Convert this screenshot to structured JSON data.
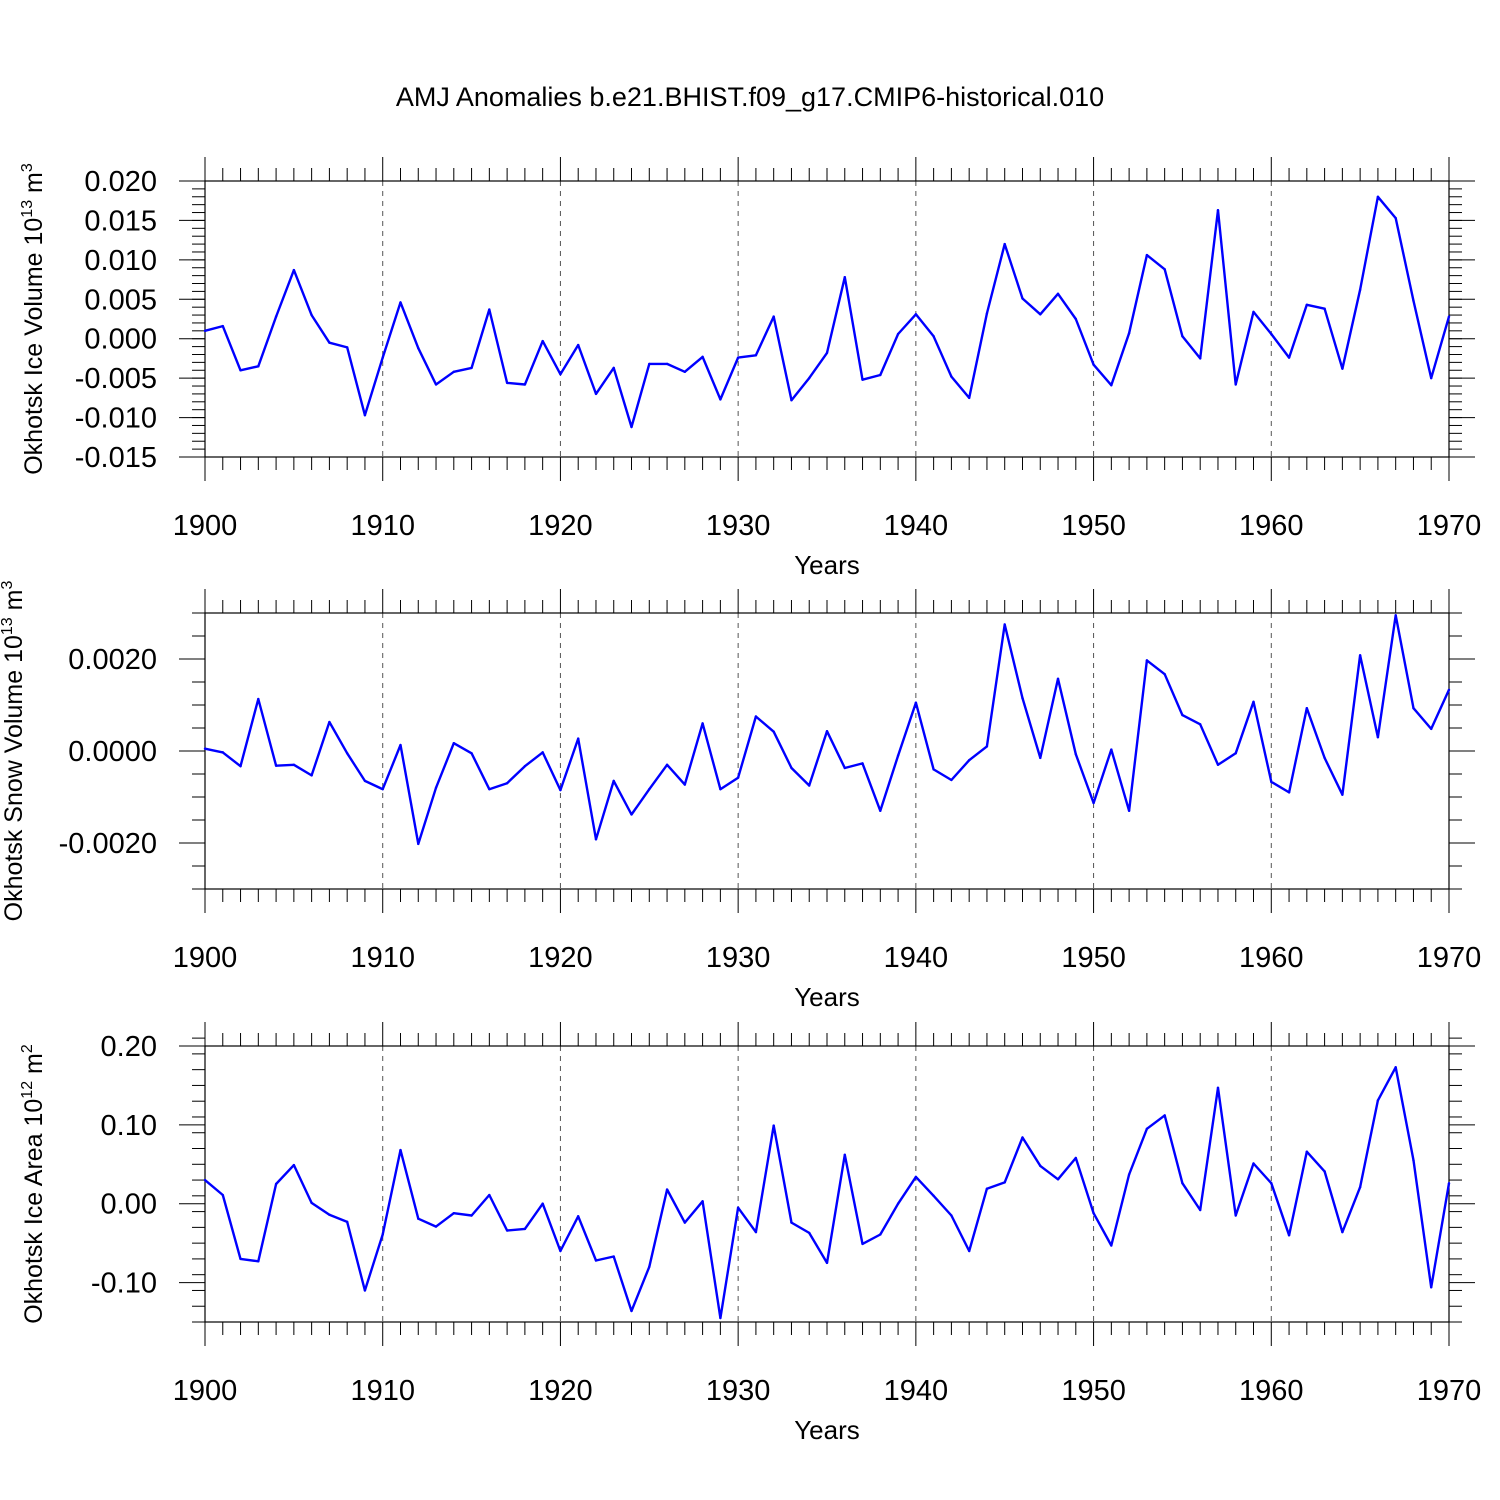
{
  "title": "AMJ Anomalies b.e21.BHIST.f09_g17.CMIP6-historical.010",
  "chart_data": [
    {
      "type": "line",
      "ylabel": "Okhotsk Ice Volume",
      "yunit_base": "10",
      "yunit_exp": "13",
      "yunit_tail": "m",
      "yunit_tail_exp": "3",
      "xlabel": "Years",
      "xlim": [
        1900,
        1970
      ],
      "ylim": [
        -0.015,
        0.02
      ],
      "yticks": [
        0.02,
        0.015,
        0.01,
        0.005,
        0.0,
        -0.005,
        -0.01,
        -0.015
      ],
      "ytick_labels": [
        "0.020",
        "0.015",
        "0.010",
        "0.005",
        "0.000",
        "-0.005",
        "-0.010",
        "-0.015"
      ],
      "xticks": [
        1900,
        1910,
        1920,
        1930,
        1940,
        1950,
        1960,
        1970
      ],
      "xtick_labels": [
        "1900",
        "1910",
        "1920",
        "1930",
        "1940",
        "1950",
        "1960",
        "1970"
      ],
      "x_start": 1900,
      "values": [
        0.001,
        0.0016,
        -0.004,
        -0.0035,
        0.0028,
        0.0087,
        0.003,
        -0.0005,
        -0.0011,
        -0.0097,
        -0.0024,
        0.0046,
        -0.0012,
        -0.0058,
        -0.0042,
        -0.0037,
        0.0037,
        -0.0056,
        -0.0058,
        -0.0003,
        -0.0045,
        -0.0008,
        -0.007,
        -0.0037,
        -0.0112,
        -0.0032,
        -0.0032,
        -0.0042,
        -0.0023,
        -0.0077,
        -0.0024,
        -0.0021,
        0.0028,
        -0.0078,
        -0.005,
        -0.0018,
        0.0078,
        -0.0052,
        -0.0046,
        0.0006,
        0.0031,
        0.0003,
        -0.0048,
        -0.0075,
        0.0032,
        0.012,
        0.0051,
        0.0031,
        0.0057,
        0.0025,
        -0.0033,
        -0.0059,
        0.0007,
        0.0106,
        0.0088,
        0.0003,
        -0.0025,
        0.0163,
        -0.0058,
        0.0034,
        0.0006,
        -0.0024,
        0.0043,
        0.0038,
        -0.0038,
        0.0062,
        0.018,
        0.0153,
        0.0048,
        -0.005,
        0.0028
      ],
      "minor_y_step": 0.001
    },
    {
      "type": "line",
      "ylabel": "Okhotsk Snow Volume",
      "yunit_base": "10",
      "yunit_exp": "13",
      "yunit_tail": "m",
      "yunit_tail_exp": "3",
      "xlabel": "Years",
      "xlim": [
        1900,
        1970
      ],
      "ylim": [
        -0.003,
        0.003
      ],
      "yticks": [
        0.002,
        0.0,
        -0.002
      ],
      "ytick_labels": [
        "0.0020",
        "0.0000",
        "-0.0020"
      ],
      "xticks": [
        1900,
        1910,
        1920,
        1930,
        1940,
        1950,
        1960,
        1970
      ],
      "xtick_labels": [
        "1900",
        "1910",
        "1920",
        "1930",
        "1940",
        "1950",
        "1960",
        "1970"
      ],
      "x_start": 1900,
      "values": [
        5e-05,
        -3e-05,
        -0.00033,
        0.00113,
        -0.00032,
        -0.0003,
        -0.00053,
        0.00063,
        -5e-05,
        -0.00065,
        -0.00083,
        0.00013,
        -0.00202,
        -0.0008,
        0.00017,
        -5e-05,
        -0.00083,
        -0.0007,
        -0.00033,
        -3e-05,
        -0.00085,
        0.00027,
        -0.00192,
        -0.00065,
        -0.00138,
        -0.00083,
        -0.0003,
        -0.00073,
        0.0006,
        -0.00083,
        -0.00058,
        0.00075,
        0.00042,
        -0.00037,
        -0.00075,
        0.00043,
        -0.00037,
        -0.00027,
        -0.0013,
        -0.0001,
        0.00105,
        -0.0004,
        -0.00063,
        -0.0002,
        0.0001,
        0.00275,
        0.00115,
        -0.00015,
        0.00157,
        -7e-05,
        -0.00113,
        3e-05,
        -0.0013,
        0.00197,
        0.00167,
        0.00078,
        0.00058,
        -0.0003,
        -5e-05,
        0.00107,
        -0.00067,
        -0.0009,
        0.00093,
        -0.00015,
        -0.00095,
        0.00208,
        0.0003,
        0.00295,
        0.00093,
        0.00048,
        0.00133
      ],
      "minor_y_step": 0.0005
    },
    {
      "type": "line",
      "ylabel": "Okhotsk Ice Area",
      "yunit_base": "10",
      "yunit_exp": "12",
      "yunit_tail": "m",
      "yunit_tail_exp": "2",
      "xlabel": "Years",
      "xlim": [
        1900,
        1970
      ],
      "ylim": [
        -0.15,
        0.2
      ],
      "yticks": [
        0.2,
        0.1,
        0.0,
        -0.1
      ],
      "ytick_labels": [
        "0.20",
        "0.10",
        "0.00",
        "-0.10"
      ],
      "xticks": [
        1900,
        1910,
        1920,
        1930,
        1940,
        1950,
        1960,
        1970
      ],
      "xtick_labels": [
        "1900",
        "1910",
        "1920",
        "1930",
        "1940",
        "1950",
        "1960",
        "1970"
      ],
      "x_start": 1900,
      "values": [
        0.03,
        0.011,
        -0.07,
        -0.073,
        0.025,
        0.049,
        0.001,
        -0.014,
        -0.023,
        -0.11,
        -0.039,
        0.068,
        -0.019,
        -0.029,
        -0.012,
        -0.015,
        0.011,
        -0.034,
        -0.032,
        0.0,
        -0.06,
        -0.016,
        -0.072,
        -0.067,
        -0.136,
        -0.08,
        0.018,
        -0.024,
        0.003,
        -0.145,
        -0.005,
        -0.036,
        0.099,
        -0.024,
        -0.037,
        -0.075,
        0.062,
        -0.051,
        -0.039,
        0.0,
        0.034,
        0.01,
        -0.015,
        -0.06,
        0.019,
        0.027,
        0.084,
        0.048,
        0.031,
        0.058,
        -0.012,
        -0.053,
        0.037,
        0.095,
        0.112,
        0.026,
        -0.008,
        0.147,
        -0.015,
        0.051,
        0.026,
        -0.04,
        0.066,
        0.041,
        -0.036,
        0.021,
        0.131,
        0.173,
        0.055,
        -0.106,
        0.026
      ],
      "minor_y_step": 0.02
    }
  ]
}
